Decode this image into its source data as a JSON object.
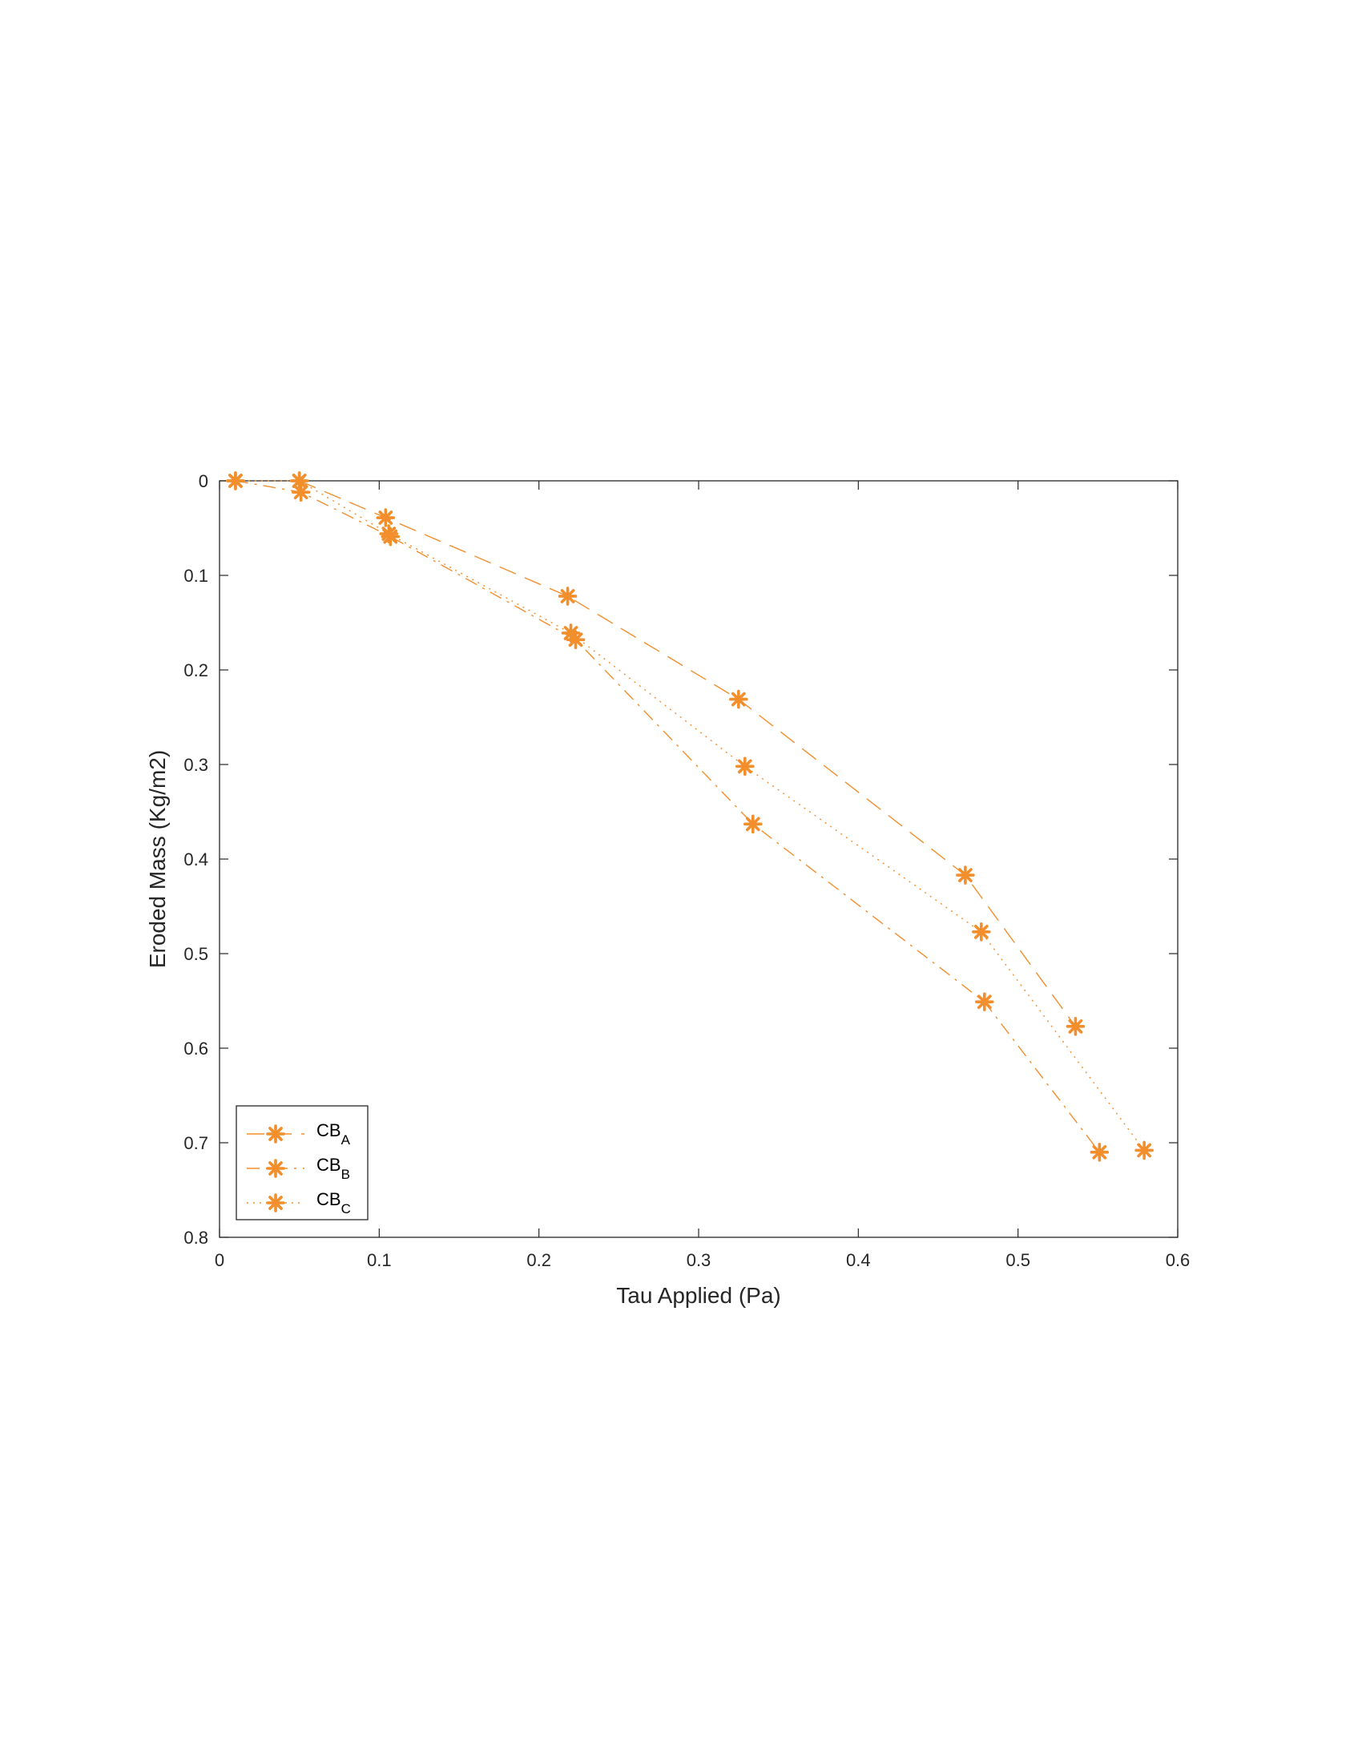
{
  "chart_data": {
    "type": "line",
    "xlabel": "Tau Applied  (Pa)",
    "ylabel": "Eroded Mass  (Kg/m2)",
    "xlim": [
      0,
      0.6
    ],
    "ylim": [
      0,
      0.8
    ],
    "y_direction": "reversed",
    "grid": false,
    "legend_position": "bottom-left",
    "x_ticks": [
      "0",
      "0.1",
      "0.2",
      "0.3",
      "0.4",
      "0.5",
      "0.6"
    ],
    "y_ticks": [
      "0",
      "0.1",
      "0.2",
      "0.3",
      "0.4",
      "0.5",
      "0.6",
      "0.7",
      "0.8"
    ],
    "color": "#F28E2B",
    "marker": "asterisk",
    "series": [
      {
        "legend_main": "CB",
        "legend_sub": "A",
        "line_style": "dashed",
        "x": [
          0.05,
          0.104,
          0.218,
          0.325,
          0.467,
          0.536
        ],
        "y": [
          0.0,
          0.039,
          0.122,
          0.231,
          0.417,
          0.577
        ]
      },
      {
        "legend_main": "CB",
        "legend_sub": "B",
        "line_style": "dashdot",
        "x": [
          0.01,
          0.051,
          0.107,
          0.223,
          0.334,
          0.479,
          0.551
        ],
        "y": [
          0.0,
          0.012,
          0.059,
          0.168,
          0.363,
          0.551,
          0.71
        ]
      },
      {
        "legend_main": "CB",
        "legend_sub": "C",
        "line_style": "dotted",
        "x": [
          0.01,
          0.05,
          0.106,
          0.22,
          0.329,
          0.477,
          0.579
        ],
        "y": [
          0.0,
          0.0,
          0.056,
          0.161,
          0.302,
          0.477,
          0.708
        ]
      }
    ]
  }
}
